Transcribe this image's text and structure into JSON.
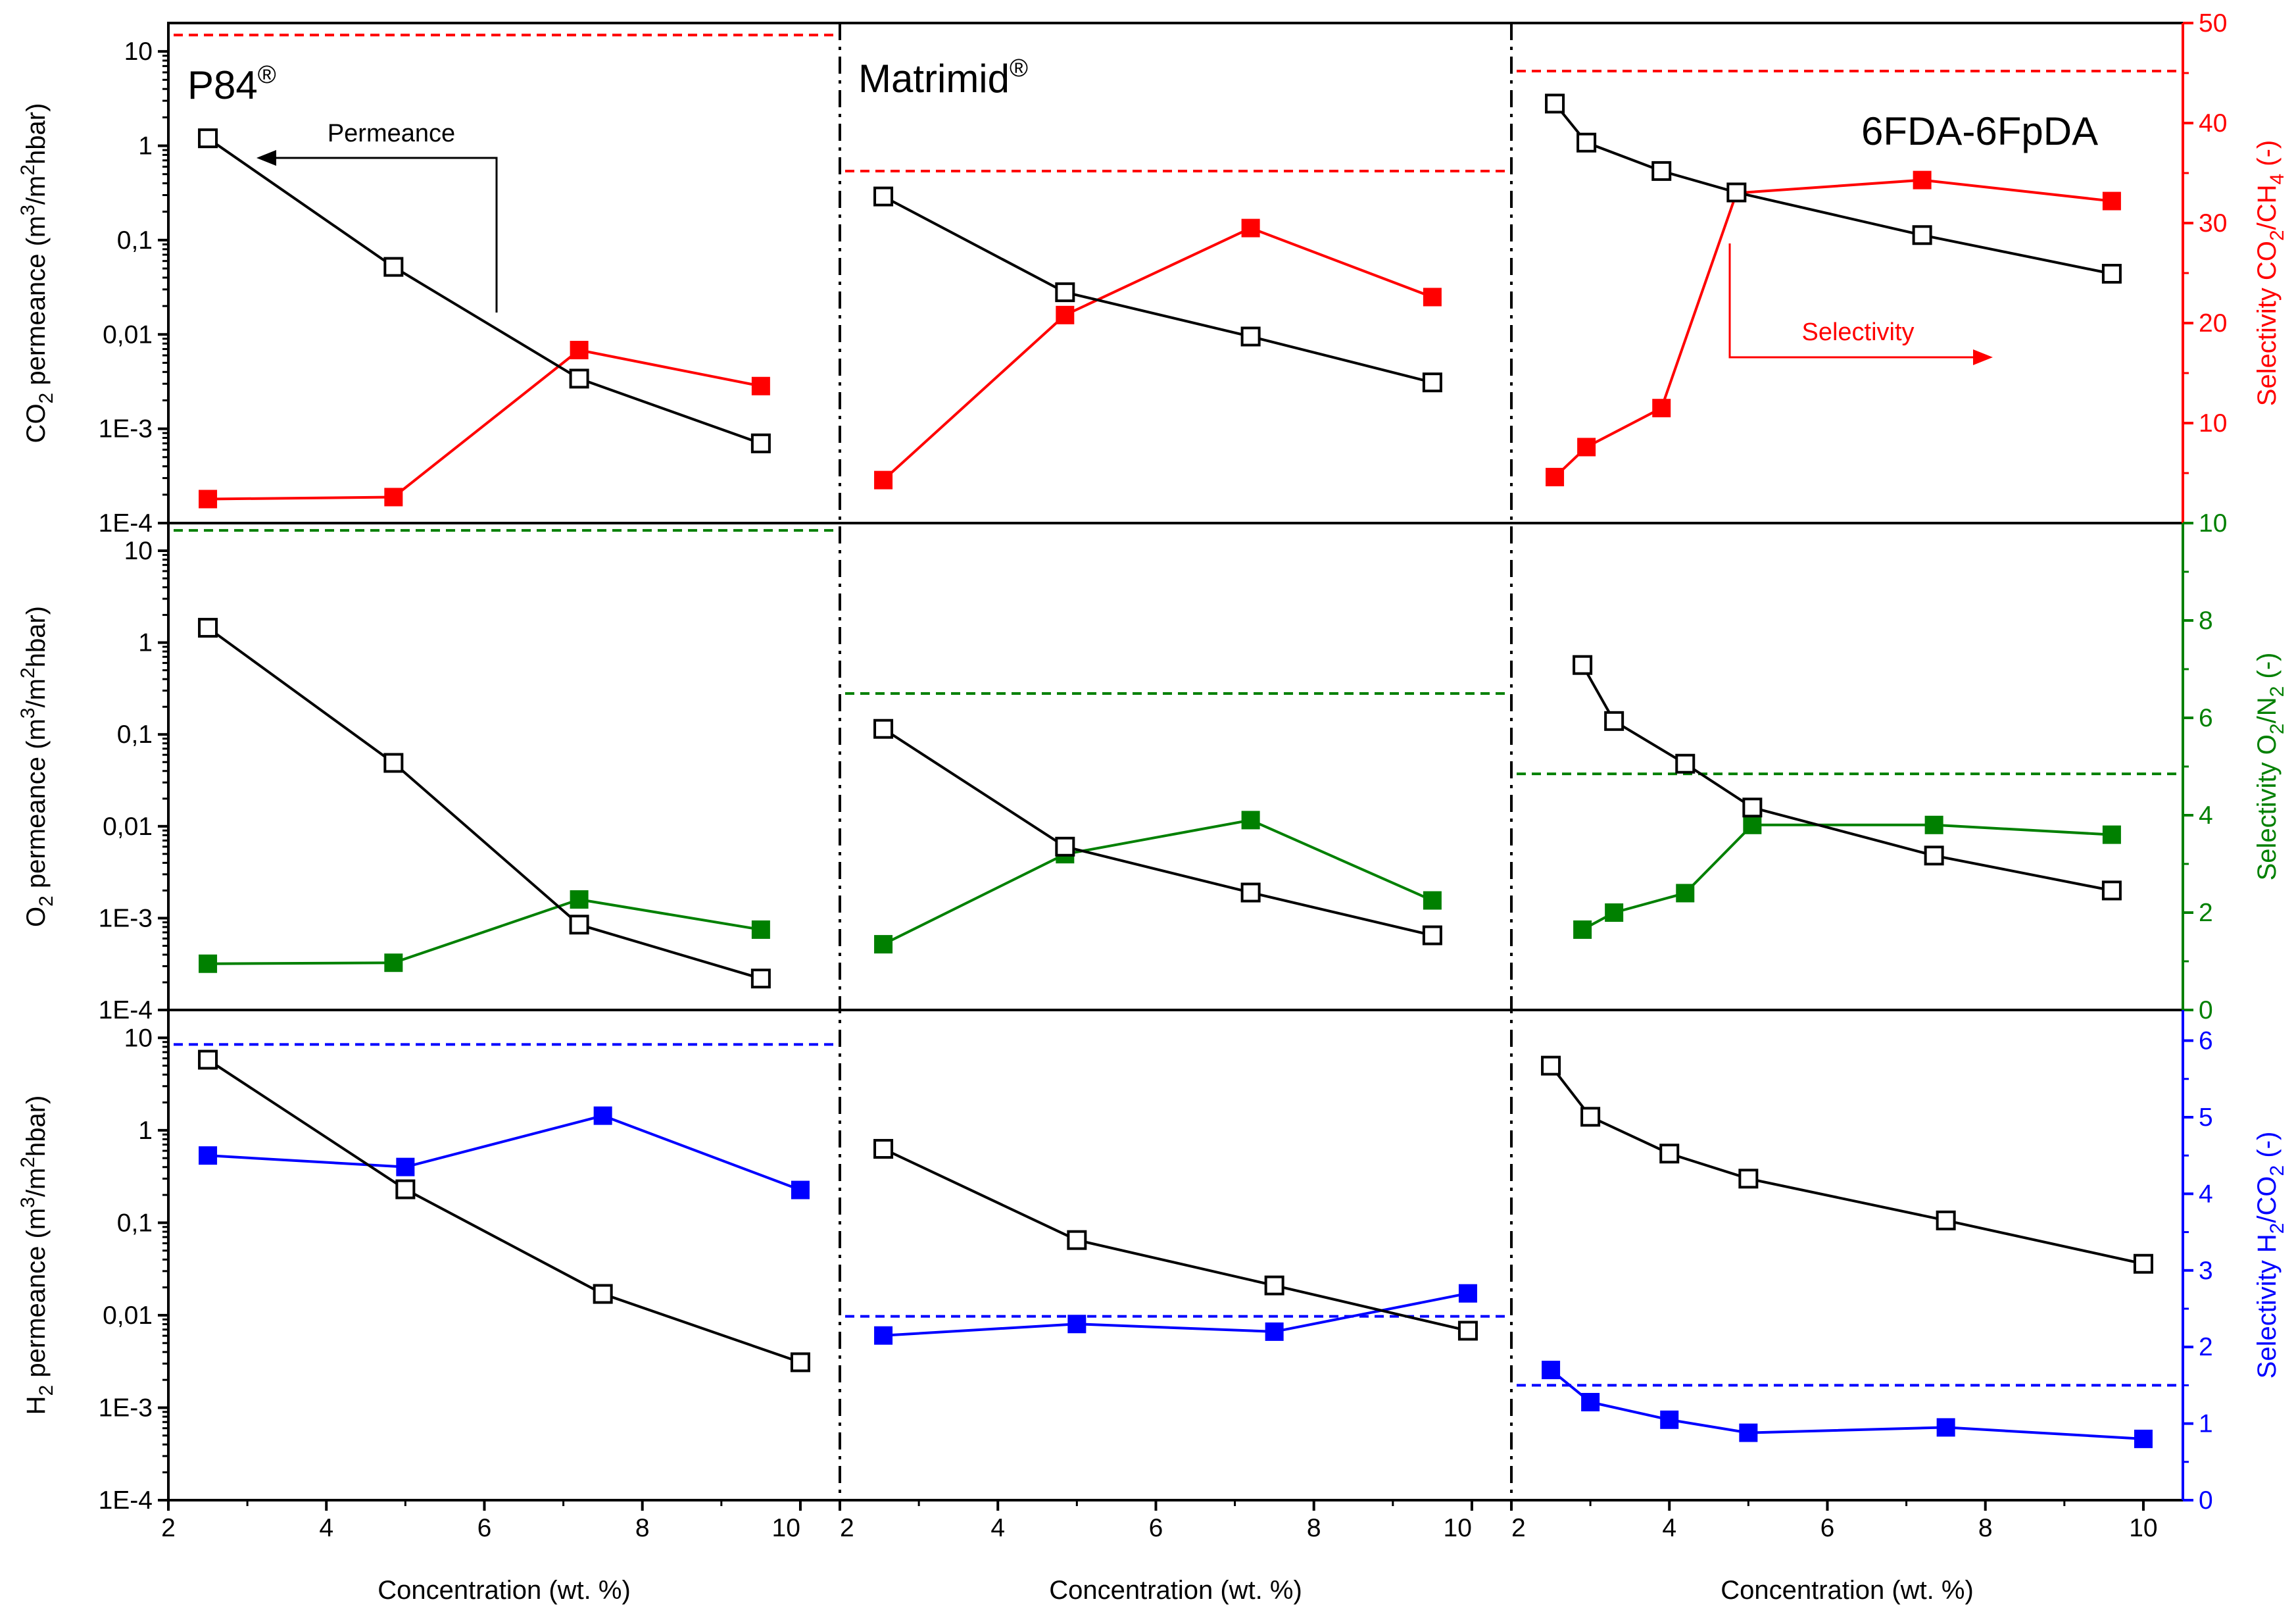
{
  "colors": {
    "permeance": "#000000",
    "co2_ch4": "#ff0000",
    "o2_n2": "#008000",
    "h2_co2": "#0000ff"
  },
  "axis_labels": {
    "xlabel": "Concentration (wt. %)",
    "row_left": [
      {
        "base": "CO",
        "sub": "2",
        "tail": " permeance (m",
        "sup": "3",
        "tail2": "/m",
        "sup2": "2",
        "tail3": "hbar)"
      },
      {
        "base": "O",
        "sub": "2",
        "tail": " permeance (m",
        "sup": "3",
        "tail2": "/m",
        "sup2": "2",
        "tail3": "hbar)"
      },
      {
        "base": "H",
        "sub": "2",
        "tail": " permeance (m",
        "sup": "3",
        "tail2": "/m",
        "sup2": "2",
        "tail3": "hbar)"
      }
    ],
    "row_right": [
      {
        "pre": "Selectivity CO",
        "s1": "2",
        "mid": "/CH",
        "s2": "4",
        "post": " (-)"
      },
      {
        "pre": "Selectivity O",
        "s1": "2",
        "mid": "/N",
        "s2": "2",
        "post": " (-)"
      },
      {
        "pre": "Selectivity H",
        "s1": "2",
        "mid": "/CO",
        "s2": "2",
        "post": " (-)"
      }
    ]
  },
  "panel_titles": [
    {
      "name": "P84",
      "reg": "®"
    },
    {
      "name": "Matrimid",
      "reg": "®"
    },
    {
      "name": "6FDA-6FpDA",
      "reg": ""
    }
  ],
  "annotations": {
    "permeance": "Permeance",
    "selectivity": "Selectivity"
  },
  "chart_data": {
    "type": "line",
    "layout": "3 rows (CO2, O2, H2) x 3 columns (P84, Matrimid, 6FDA-6FpDA); left log axis permeance, right linear axis selectivity",
    "x_ticks": {
      "P84": [
        2,
        4,
        6,
        8,
        10
      ],
      "Matrimid": [
        2,
        4,
        6,
        8,
        10
      ],
      "6FDA-6FpDA": [
        2,
        4,
        6,
        8,
        10
      ]
    },
    "xlim": [
      2,
      10.5
    ],
    "left_axis": {
      "scale": "log",
      "ylim": [
        0.0001,
        20
      ],
      "tick_values": [
        0.0001,
        0.001,
        0.01,
        0.1,
        1,
        10
      ],
      "tick_labels": [
        "1E-4",
        "1E-3",
        "0,01",
        "0,1",
        "1",
        "10"
      ]
    },
    "right_axis": [
      {
        "row": "CO2",
        "ylim": [
          0,
          50
        ],
        "ticks": [
          10,
          20,
          30,
          40,
          50
        ]
      },
      {
        "row": "O2",
        "ylim": [
          0,
          10
        ],
        "ticks": [
          0,
          2,
          4,
          6,
          8,
          10
        ]
      },
      {
        "row": "H2",
        "ylim": [
          0,
          6.4
        ],
        "ticks": [
          0,
          1,
          2,
          3,
          4,
          5,
          6
        ]
      }
    ],
    "rows": [
      {
        "gas": "CO2",
        "selectivity": "CO2/CH4",
        "panels": [
          {
            "membrane": "P84",
            "x_perm": [
              2.5,
              4.85,
              7.2,
              9.5
            ],
            "permeance": [
              1.2,
              0.052,
              0.0034,
              0.0007
            ],
            "x_sel": [
              2.5,
              4.85,
              7.2,
              9.5
            ],
            "selectivity": [
              2.4,
              2.6,
              17.3,
              13.7
            ],
            "reference": 48.8
          },
          {
            "membrane": "Matrimid",
            "x_perm": [
              2.55,
              4.85,
              7.2,
              9.5
            ],
            "permeance": [
              0.29,
              0.028,
              0.0095,
              0.0031
            ],
            "x_sel": [
              2.55,
              4.85,
              7.2,
              9.5
            ],
            "selectivity": [
              4.3,
              20.8,
              29.5,
              22.6
            ],
            "reference": 35.2
          },
          {
            "membrane": "6FDA-6FpDA",
            "x_perm": [
              2.55,
              2.95,
              3.9,
              4.85,
              7.2,
              9.6
            ],
            "permeance": [
              2.8,
              1.08,
              0.54,
              0.32,
              0.113,
              0.044
            ],
            "x_sel": [
              2.55,
              2.95,
              3.9,
              4.85,
              7.2,
              9.6
            ],
            "selectivity": [
              4.6,
              7.6,
              11.5,
              33.0,
              34.3,
              32.2
            ],
            "reference": 45.2
          }
        ]
      },
      {
        "gas": "O2",
        "selectivity": "O2/N2",
        "panels": [
          {
            "membrane": "P84",
            "x_perm": [
              2.5,
              4.85,
              7.2,
              9.5
            ],
            "permeance": [
              1.45,
              0.049,
              0.00085,
              0.00022
            ],
            "x_sel": [
              2.5,
              4.85,
              7.2,
              9.5
            ],
            "selectivity": [
              0.95,
              0.97,
              2.27,
              1.65
            ],
            "reference": 9.85
          },
          {
            "membrane": "Matrimid",
            "x_perm": [
              2.55,
              4.85,
              7.2,
              9.5
            ],
            "permeance": [
              0.115,
              0.006,
              0.0019,
              0.00065
            ],
            "x_sel": [
              2.55,
              4.85,
              7.2,
              9.5
            ],
            "selectivity": [
              1.35,
              3.2,
              3.9,
              2.25
            ],
            "reference": 6.5
          },
          {
            "membrane": "6FDA-6FpDA",
            "x_perm": [
              2.9,
              3.3,
              4.2,
              5.05,
              7.35,
              9.6
            ],
            "permeance": [
              0.57,
              0.14,
              0.048,
              0.016,
              0.0048,
              0.002
            ],
            "x_sel": [
              2.9,
              3.3,
              4.2,
              5.05,
              7.35,
              9.6
            ],
            "selectivity": [
              1.65,
              2.0,
              2.4,
              3.8,
              3.8,
              3.6
            ],
            "reference": 4.85
          }
        ]
      },
      {
        "gas": "H2",
        "selectivity": "H2/CO2",
        "panels": [
          {
            "membrane": "P84",
            "x_perm": [
              2.5,
              5.0,
              7.5,
              10.0
            ],
            "permeance": [
              5.8,
              0.23,
              0.017,
              0.0031
            ],
            "x_sel": [
              2.5,
              5.0,
              7.5,
              10.0
            ],
            "selectivity": [
              4.5,
              4.35,
              5.02,
              4.05
            ],
            "reference": 5.95
          },
          {
            "membrane": "Matrimid",
            "x_perm": [
              2.55,
              5.0,
              7.5,
              9.95
            ],
            "permeance": [
              0.63,
              0.065,
              0.021,
              0.0068
            ],
            "x_sel": [
              2.55,
              5.0,
              7.5,
              9.95
            ],
            "selectivity": [
              2.15,
              2.3,
              2.2,
              2.7
            ],
            "reference": 2.4
          },
          {
            "membrane": "6FDA-6FpDA",
            "x_perm": [
              2.5,
              3.0,
              4.0,
              5.0,
              7.5,
              10.0
            ],
            "permeance": [
              5.0,
              1.4,
              0.56,
              0.3,
              0.106,
              0.036
            ],
            "x_sel": [
              2.5,
              3.0,
              4.0,
              5.0,
              7.5,
              10.0
            ],
            "selectivity": [
              1.7,
              1.28,
              1.05,
              0.88,
              0.95,
              0.8
            ],
            "reference": 1.5
          }
        ]
      }
    ]
  }
}
